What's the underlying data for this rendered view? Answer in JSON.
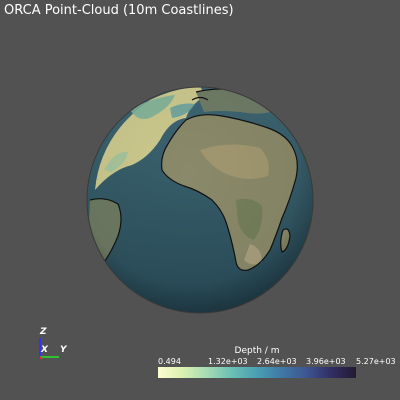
{
  "window": {
    "title": "ORCA Point-Cloud (10m Coastlines)"
  },
  "render_view": {
    "object": "globe",
    "colormap_colors": {
      "shallow": "#fdfdd1",
      "mid": "#4a9fb2",
      "deep": "#241a32",
      "background": "#525252"
    }
  },
  "orientation_axes": {
    "z_label": "Z",
    "x_label": "X",
    "y_label": "Y",
    "colors": {
      "x": "#e03030",
      "y": "#30c030",
      "z": "#3030ff"
    }
  },
  "scalar_bar": {
    "title": "Depth / m",
    "ticks": [
      "0.494",
      "1.32e+03",
      "2.64e+03",
      "3.96e+03",
      "5.27e+03"
    ]
  }
}
